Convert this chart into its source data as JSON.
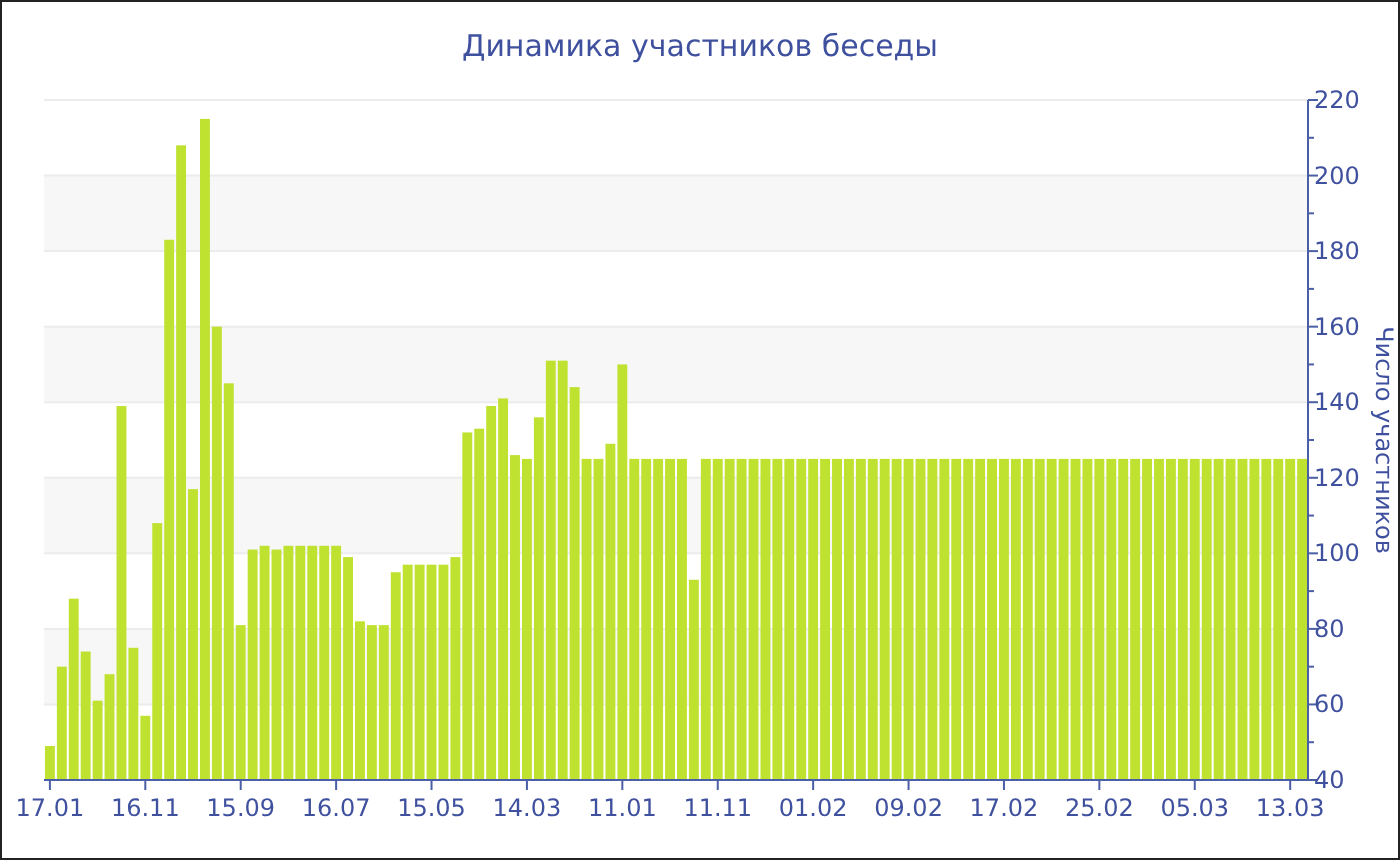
{
  "chart_data": {
    "type": "bar",
    "title": "Динамика участников беседы",
    "ylabel": "Число участников",
    "categories": [
      "17.01",
      null,
      null,
      null,
      null,
      null,
      null,
      null,
      "16.11",
      null,
      null,
      null,
      null,
      null,
      null,
      null,
      "15.09",
      null,
      null,
      null,
      null,
      null,
      null,
      null,
      "16.07",
      null,
      null,
      null,
      null,
      null,
      null,
      null,
      "15.05",
      null,
      null,
      null,
      null,
      null,
      null,
      null,
      "14.03",
      null,
      null,
      null,
      null,
      null,
      null,
      null,
      "11.01",
      null,
      null,
      null,
      null,
      null,
      null,
      null,
      "11.11",
      null,
      null,
      null,
      null,
      null,
      null,
      null,
      "01.02",
      null,
      null,
      null,
      null,
      null,
      null,
      null,
      "09.02",
      null,
      null,
      null,
      null,
      null,
      null,
      null,
      "17.02",
      null,
      null,
      null,
      null,
      null,
      null,
      null,
      "25.02",
      null,
      null,
      null,
      null,
      null,
      null,
      null,
      "05.03",
      null,
      null,
      null,
      null,
      null,
      null,
      null,
      "13.03",
      null
    ],
    "values": [
      49,
      70,
      88,
      74,
      61,
      68,
      139,
      75,
      57,
      108,
      183,
      208,
      117,
      215,
      160,
      145,
      81,
      101,
      102,
      101,
      102,
      102,
      102,
      102,
      102,
      99,
      82,
      81,
      81,
      95,
      97,
      97,
      97,
      97,
      99,
      132,
      133,
      139,
      141,
      126,
      125,
      136,
      151,
      151,
      144,
      125,
      125,
      129,
      150,
      125,
      125,
      125,
      125,
      125,
      93,
      125,
      125,
      125,
      125,
      125,
      125,
      125,
      125,
      125,
      125,
      125,
      125,
      125,
      125,
      125,
      125,
      125,
      125,
      125,
      125,
      125,
      125,
      125,
      125,
      125,
      125,
      125,
      125,
      125,
      125,
      125,
      125,
      125,
      125,
      125,
      125,
      125,
      125,
      125,
      125,
      125,
      125,
      125,
      125,
      125,
      125,
      125,
      125,
      125,
      125,
      125
    ],
    "color": "#bfe12f",
    "ylim": [
      40,
      220
    ],
    "yticks": [
      40,
      {
        "value": 50,
        "label": null
      },
      60,
      {
        "value": 70,
        "label": null
      },
      80,
      {
        "value": 90,
        "label": null
      },
      100,
      {
        "value": 110,
        "label": null
      },
      120,
      {
        "value": 130,
        "label": null
      },
      140,
      {
        "value": 150,
        "label": null
      },
      160,
      {
        "value": 170,
        "label": null
      },
      180,
      {
        "value": 190,
        "label": null
      },
      200,
      {
        "value": 210,
        "label": null
      },
      220
    ],
    "grid": "y"
  }
}
